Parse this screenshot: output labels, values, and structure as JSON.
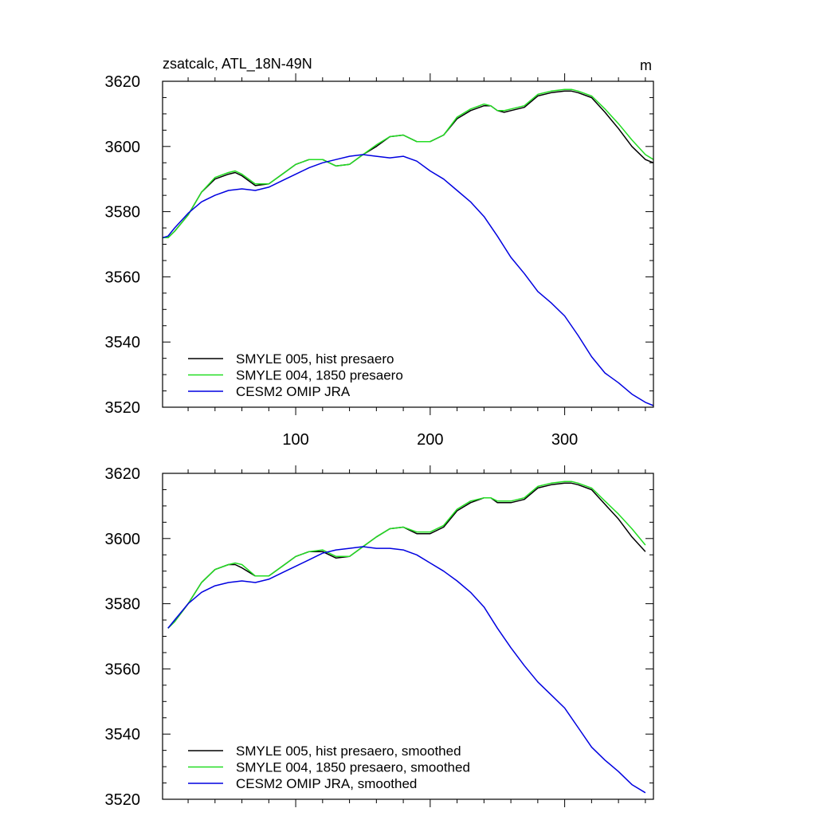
{
  "chart_data": [
    {
      "type": "line",
      "title": "zsatcalc, ATL_18N-49N",
      "units": "m",
      "xlim": [
        1,
        366
      ],
      "ylim": [
        3520,
        3620
      ],
      "xticks": [
        100,
        200,
        300
      ],
      "xtick_labels": [
        "100",
        "200",
        "300"
      ],
      "yticks": [
        3520,
        3540,
        3560,
        3580,
        3600,
        3620
      ],
      "ytick_labels": [
        "3520",
        "3540",
        "3560",
        "3580",
        "3600",
        "3620"
      ],
      "legend_position": "bottom-left",
      "series": [
        {
          "name": "SMYLE 005, hist presaero",
          "color": "#000000",
          "x": [
            1,
            5,
            10,
            20,
            30,
            40,
            50,
            55,
            60,
            70,
            80,
            90,
            100,
            110,
            120,
            130,
            140,
            150,
            160,
            170,
            180,
            190,
            200,
            210,
            220,
            230,
            240,
            245,
            250,
            255,
            260,
            270,
            280,
            290,
            300,
            305,
            310,
            320,
            330,
            340,
            350,
            360,
            366
          ],
          "y": [
            3572,
            3572,
            3574,
            3579,
            3586,
            3590,
            3591.5,
            3592,
            3591,
            3588,
            3588.5,
            3591.5,
            3594.5,
            3596,
            3596,
            3594,
            3594.5,
            3597.5,
            3600,
            3603,
            3603.5,
            3601.5,
            3601.5,
            3603.5,
            3608.5,
            3611,
            3612.5,
            3612.5,
            3611,
            3610.5,
            3611,
            3612,
            3615.5,
            3616.5,
            3617,
            3617,
            3616.5,
            3615,
            3610.5,
            3605.5,
            3600,
            3596,
            3595
          ]
        },
        {
          "name": "SMYLE 004, 1850 presaero",
          "color": "#22dd22",
          "x": [
            1,
            5,
            10,
            20,
            30,
            40,
            50,
            55,
            60,
            70,
            80,
            90,
            100,
            110,
            120,
            130,
            140,
            150,
            160,
            170,
            180,
            190,
            200,
            210,
            220,
            230,
            240,
            245,
            250,
            255,
            260,
            270,
            280,
            290,
            300,
            305,
            310,
            320,
            330,
            340,
            350,
            360,
            366
          ],
          "y": [
            3572,
            3572,
            3574,
            3579,
            3586,
            3590.5,
            3592,
            3592.5,
            3591.5,
            3588.5,
            3588.5,
            3591.5,
            3594.5,
            3596,
            3596,
            3594,
            3594.5,
            3597.5,
            3600.5,
            3603,
            3603.5,
            3601.5,
            3601.5,
            3603.5,
            3609,
            3611.5,
            3613,
            3612.5,
            3611,
            3611,
            3611.5,
            3612.5,
            3616,
            3617,
            3617.5,
            3617.5,
            3617,
            3615.5,
            3611.5,
            3607,
            3602,
            3597.5,
            3596
          ]
        },
        {
          "name": "CESM2 OMIP JRA",
          "color": "#0000e0",
          "x": [
            1,
            5,
            10,
            20,
            30,
            40,
            50,
            60,
            70,
            80,
            90,
            100,
            110,
            120,
            130,
            140,
            150,
            160,
            170,
            180,
            190,
            200,
            210,
            220,
            230,
            240,
            250,
            260,
            270,
            280,
            290,
            300,
            310,
            320,
            330,
            340,
            350,
            360,
            366
          ],
          "y": [
            3572,
            3572.5,
            3575,
            3579.5,
            3583,
            3585,
            3586.5,
            3587,
            3586.5,
            3587.5,
            3589.5,
            3591.5,
            3593.5,
            3595,
            3596,
            3597,
            3597.5,
            3597,
            3596.5,
            3597,
            3595.5,
            3592.5,
            3590,
            3586.5,
            3583,
            3578.5,
            3572.5,
            3566,
            3561,
            3555.5,
            3552,
            3548,
            3542,
            3535.5,
            3530.5,
            3527.5,
            3524,
            3521.5,
            3520.5
          ]
        }
      ]
    },
    {
      "type": "line",
      "title": "",
      "xlim": [
        1,
        366
      ],
      "ylim": [
        3520,
        3620
      ],
      "xticks": [
        100,
        200,
        300
      ],
      "yticks": [
        3520,
        3540,
        3560,
        3580,
        3600,
        3620
      ],
      "ytick_labels": [
        "3520",
        "3540",
        "3560",
        "3580",
        "3600",
        "3620"
      ],
      "legend_position": "bottom-left",
      "series": [
        {
          "name": "SMYLE 005, hist presaero, smoothed",
          "color": "#000000",
          "x": [
            5,
            10,
            20,
            30,
            40,
            50,
            55,
            60,
            70,
            80,
            90,
            100,
            110,
            120,
            130,
            140,
            150,
            160,
            170,
            180,
            190,
            200,
            210,
            220,
            230,
            240,
            245,
            250,
            255,
            260,
            270,
            280,
            290,
            300,
            305,
            310,
            320,
            330,
            340,
            350,
            360
          ],
          "y": [
            3572.5,
            3574.5,
            3580,
            3586.5,
            3590.5,
            3592,
            3592,
            3591,
            3588.5,
            3588.5,
            3591.5,
            3594.5,
            3596,
            3596,
            3594,
            3594.5,
            3597.5,
            3600.5,
            3603,
            3603.5,
            3601.5,
            3601.5,
            3603.5,
            3608.5,
            3611,
            3612.5,
            3612.5,
            3611,
            3611,
            3611,
            3612,
            3615.5,
            3616.5,
            3617,
            3617,
            3616.5,
            3615,
            3610.5,
            3606,
            3600.5,
            3596
          ]
        },
        {
          "name": "SMYLE 004, 1850 presaero, smoothed",
          "color": "#22dd22",
          "x": [
            5,
            10,
            20,
            30,
            40,
            50,
            55,
            60,
            70,
            80,
            90,
            100,
            110,
            120,
            130,
            140,
            150,
            160,
            170,
            180,
            190,
            200,
            210,
            220,
            230,
            240,
            245,
            250,
            255,
            260,
            270,
            280,
            290,
            300,
            305,
            310,
            320,
            330,
            340,
            350,
            360
          ],
          "y": [
            3572.5,
            3574.5,
            3580,
            3586.5,
            3590.5,
            3592,
            3592.5,
            3592,
            3588.5,
            3588.5,
            3591.5,
            3594.5,
            3596,
            3596.5,
            3594.5,
            3594.5,
            3597.5,
            3600.5,
            3603,
            3603.5,
            3602,
            3602,
            3604,
            3609,
            3611.5,
            3612.5,
            3612.5,
            3611.5,
            3611.5,
            3611.5,
            3612.5,
            3616,
            3617,
            3617.5,
            3617.5,
            3617,
            3615.5,
            3611.5,
            3607.5,
            3603,
            3598
          ]
        },
        {
          "name": "CESM2 OMIP JRA, smoothed",
          "color": "#0000e0",
          "x": [
            5,
            10,
            20,
            30,
            40,
            50,
            60,
            70,
            80,
            90,
            100,
            110,
            120,
            130,
            140,
            150,
            160,
            170,
            180,
            190,
            200,
            210,
            220,
            230,
            240,
            250,
            260,
            270,
            280,
            290,
            300,
            310,
            320,
            330,
            340,
            350,
            360
          ],
          "y": [
            3572.5,
            3575,
            3580,
            3583.5,
            3585.5,
            3586.5,
            3587,
            3586.5,
            3587.5,
            3589.5,
            3591.5,
            3593.5,
            3595.5,
            3596.5,
            3597,
            3597.5,
            3597,
            3597,
            3596.5,
            3595,
            3592.5,
            3590,
            3587,
            3583.5,
            3579,
            3572.5,
            3566.5,
            3561,
            3556,
            3552,
            3548,
            3542,
            3536,
            3532,
            3528.5,
            3524.5,
            3522
          ]
        }
      ]
    }
  ]
}
